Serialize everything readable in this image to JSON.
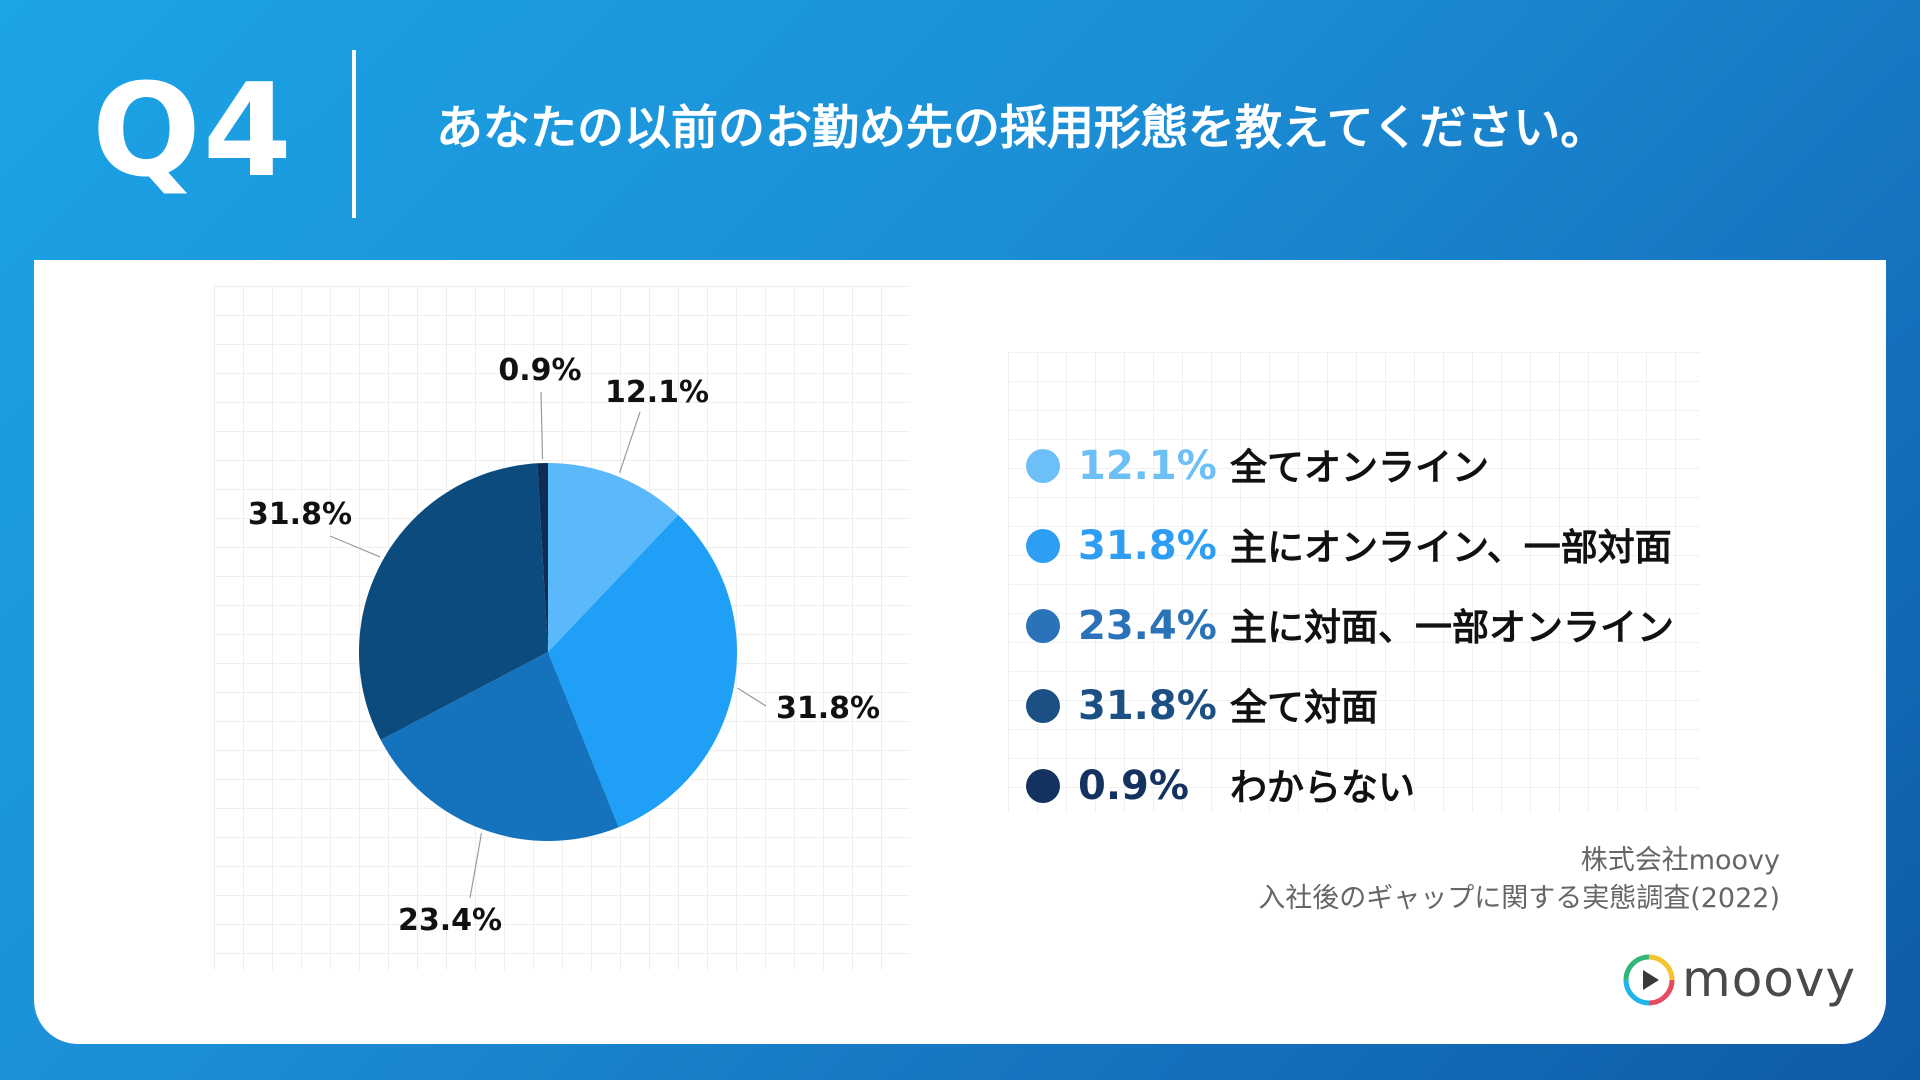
{
  "header": {
    "q_number": "Q4",
    "question": "あなたの以前のお勤め先の採用形態を教えてください。"
  },
  "chart_data": {
    "type": "pie",
    "title": "",
    "slices": [
      {
        "label": "全てオンライン",
        "value": 12.1,
        "display": "12.1%",
        "color": "#5ab8fb"
      },
      {
        "label": "主にオンライン、一部対面",
        "value": 31.8,
        "display": "31.8%",
        "color": "#1f9ff6"
      },
      {
        "label": "主に対面、一部オンライン",
        "value": 23.4,
        "display": "23.4%",
        "color": "#1572bd"
      },
      {
        "label": "全て対面",
        "value": 31.8,
        "display": "31.8%",
        "color": "#0b4b7d"
      },
      {
        "label": "わからない",
        "value": 0.9,
        "display": "0.9%",
        "color": "#0d2d57"
      }
    ],
    "legend_position": "right"
  },
  "legend": [
    {
      "pct": "12.1%",
      "text": "全てオンライン",
      "pct_color": "#6cc0f7",
      "dot_color": "#6cc0f7"
    },
    {
      "pct": "31.8%",
      "text": "主にオンライン、一部対面",
      "pct_color": "#2d9ef3",
      "dot_color": "#2d9ef3"
    },
    {
      "pct": "23.4%",
      "text": "主に対面、一部オンライン",
      "pct_color": "#2a73b8",
      "dot_color": "#2a73b8"
    },
    {
      "pct": "31.8%",
      "text": "全て対面",
      "pct_color": "#1c4f84",
      "dot_color": "#1c4f84"
    },
    {
      "pct": "0.9%",
      "text": "わからない",
      "pct_color": "#13325f",
      "dot_color": "#13325f"
    }
  ],
  "source": {
    "line1": "株式会社moovy",
    "line2": "入社後のギャップに関する実態調査(2022)"
  },
  "brand": {
    "name": "moovy",
    "logo_icon": "play-circle-icon"
  }
}
